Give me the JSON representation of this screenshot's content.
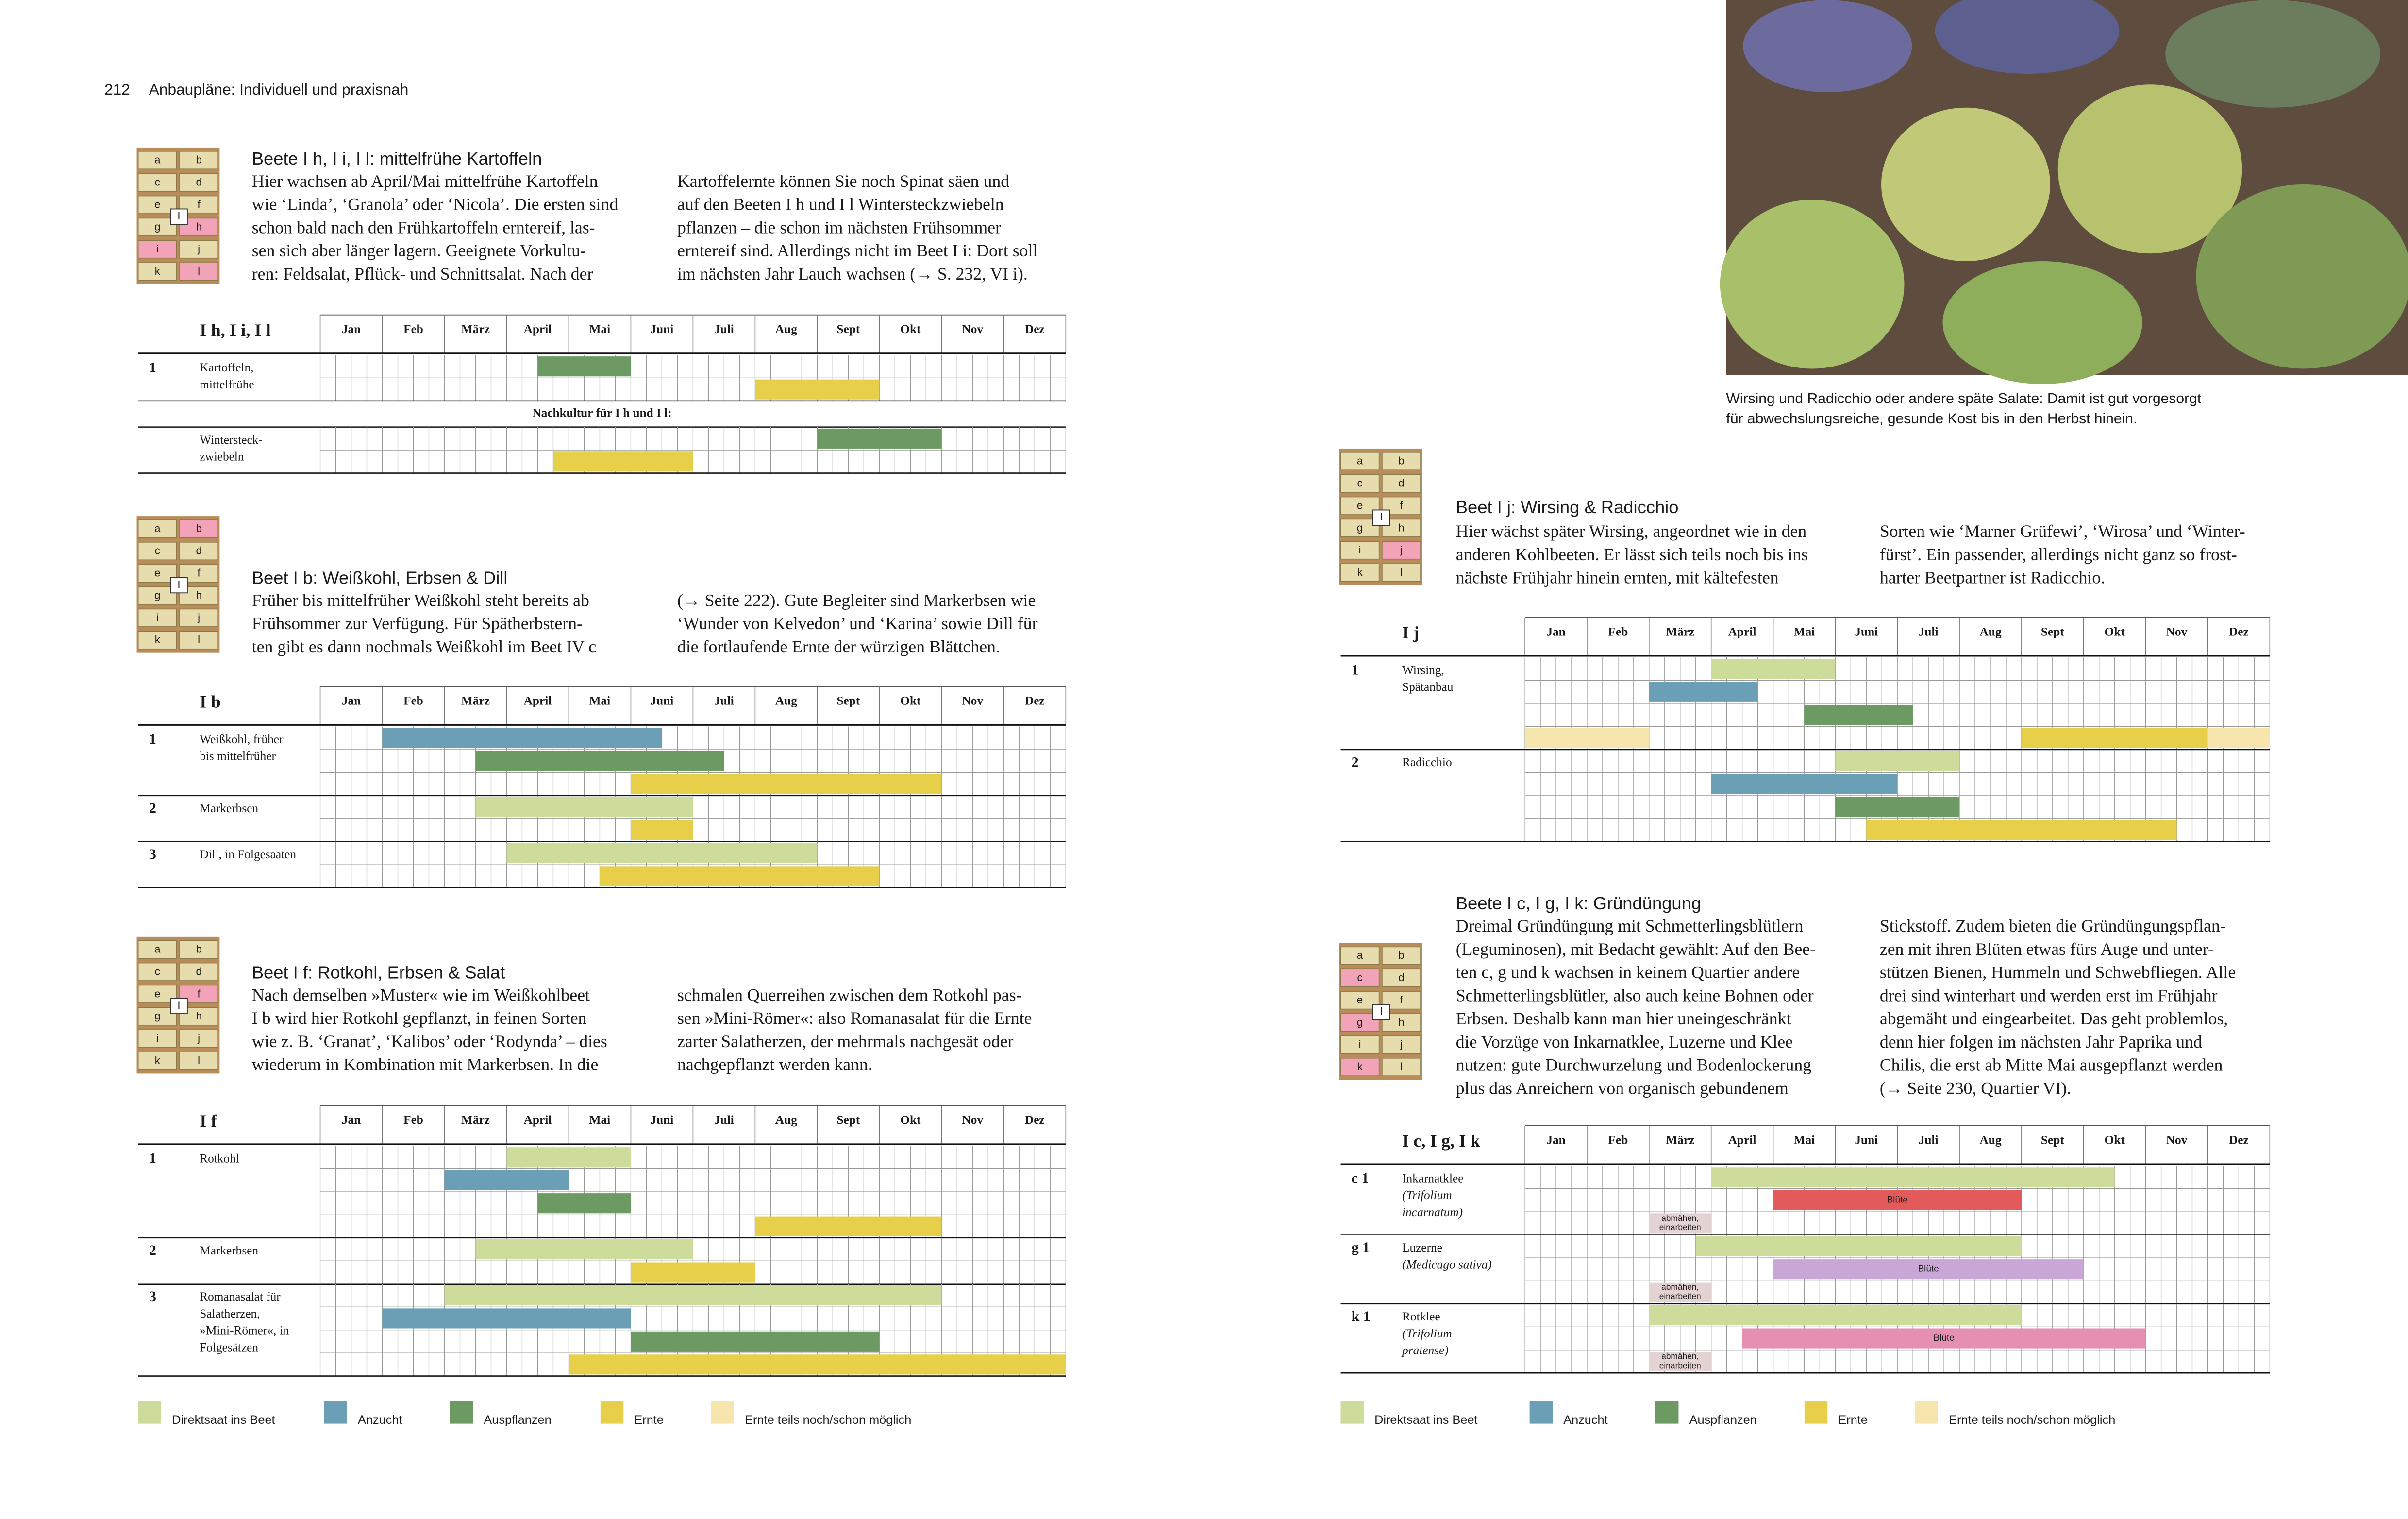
{
  "header": {
    "page": "212",
    "title": "Anbaupläne: Individuell und praxisnah"
  },
  "photo": {
    "caption": [
      "Wirsing und Radicchio oder andere späte Salate: Damit ist gut vorgesorgt",
      "für abwechslungsreiche, gesunde Kost bis in den Herbst hinein."
    ]
  },
  "months": [
    "Jan",
    "Feb",
    "März",
    "April",
    "Mai",
    "Juni",
    "Juli",
    "Aug",
    "Sept",
    "Okt",
    "Nov",
    "Dez"
  ],
  "sections": [
    {
      "bed": {
        "cells": [
          "a",
          "b",
          "c",
          "d",
          "e",
          "f",
          "g",
          "h",
          "i",
          "j",
          "k",
          "l"
        ],
        "center": "I",
        "highlight": [
          "h",
          "i",
          "l"
        ]
      },
      "title": "Beete I h, I i, I l: mittelfrühe Kartoffeln",
      "columns": [
        [
          "Hier wachsen ab April/Mai mittelfrühe Kartoffeln",
          "wie ‘Linda’, ‘Granola’ oder ‘Nicola’. Die ersten sind",
          "schon bald nach den Frühkartoffeln erntereif, las-",
          "sen sich aber länger lagern. Geeignete Vorkultu-",
          "ren: Feldsalat, Pflück- und Schnittsalat. Nach der"
        ],
        [
          "Kartoffelernte können Sie noch Spinat säen und",
          "auf den Beeten I h und I l Wintersteckzwiebeln",
          "pflanzen – die schon im nächsten Frühsommer",
          "erntereif sind. Allerdings nicht im Beet I i: Dort soll",
          "im nächsten Jahr Lauch wachsen (→ S. 232, VI i)."
        ]
      ],
      "table": {
        "label": "I h, I i, I l",
        "groups": [
          {
            "number": "1",
            "name": [
              "Kartoffeln,",
              "mittelfrühe"
            ],
            "rows": [
              [
                {
                  "start": 3.5,
                  "end": 5,
                  "color": "#6d9a63"
                }
              ],
              [
                {
                  "start": 7,
                  "end": 9,
                  "color": "#e8cf4a"
                }
              ]
            ]
          },
          {
            "note": "Nachkultur für I h und I l:"
          },
          {
            "name": [
              "Wintersteck-",
              "zwiebeln"
            ],
            "rows": [
              [
                {
                  "start": 8,
                  "end": 10,
                  "color": "#6d9a63"
                }
              ],
              [
                {
                  "start": 3.75,
                  "end": 6,
                  "color": "#e8cf4a"
                }
              ]
            ]
          }
        ]
      }
    },
    {
      "bed": {
        "cells": [
          "a",
          "b",
          "c",
          "d",
          "e",
          "f",
          "g",
          "h",
          "i",
          "j",
          "k",
          "l"
        ],
        "center": "I",
        "highlight": [
          "b"
        ]
      },
      "title": "Beet I b: Weißkohl, Erbsen & Dill",
      "columns": [
        [
          "Früher bis mittelfrüher Weißkohl steht bereits ab",
          "Frühsommer zur Verfügung. Für Spätherbstern-",
          "ten gibt es dann nochmals Weißkohl im Beet IV c"
        ],
        [
          "(→ Seite 222). Gute Begleiter sind Markerbsen wie",
          "‘Wunder von Kelvedon’ und ‘Karina’ sowie Dill für",
          "die fortlaufende Ernte der würzigen Blättchen."
        ]
      ],
      "table": {
        "label": "I b",
        "groups": [
          {
            "number": "1",
            "name": [
              "Weißkohl, früher",
              "bis mittelfrüher"
            ],
            "rows": [
              [
                {
                  "start": 1,
                  "end": 5.5,
                  "color": "#6b9fb6"
                }
              ],
              [
                {
                  "start": 2.5,
                  "end": 6.5,
                  "color": "#6d9a63"
                }
              ],
              [
                {
                  "start": 5,
                  "end": 10,
                  "color": "#e8cf4a"
                }
              ]
            ]
          },
          {
            "number": "2",
            "name": [
              "Markerbsen"
            ],
            "rows": [
              [
                {
                  "start": 2.5,
                  "end": 6,
                  "color": "#cddb9b"
                }
              ],
              [
                {
                  "start": 5,
                  "end": 6,
                  "color": "#e8cf4a"
                }
              ]
            ]
          },
          {
            "number": "3",
            "name": [
              "Dill, in Folgesaaten"
            ],
            "rows": [
              [
                {
                  "start": 3,
                  "end": 8,
                  "color": "#cddb9b"
                }
              ],
              [
                {
                  "start": 4.5,
                  "end": 9,
                  "color": "#e8cf4a"
                }
              ]
            ]
          }
        ]
      }
    },
    {
      "bed": {
        "cells": [
          "a",
          "b",
          "c",
          "d",
          "e",
          "f",
          "g",
          "h",
          "i",
          "j",
          "k",
          "l"
        ],
        "center": "I",
        "highlight": [
          "f"
        ]
      },
      "title": "Beet I f: Rotkohl, Erbsen & Salat",
      "columns": [
        [
          "Nach demselben »Muster« wie im Weißkohlbeet",
          "I b wird hier Rotkohl gepflanzt, in feinen Sorten",
          "wie z. B. ‘Granat’, ‘Kalibos’ oder ‘Rodynda’ – dies",
          "wiederum in Kombination mit Markerbsen. In die"
        ],
        [
          "schmalen Querreihen zwischen dem Rotkohl pas-",
          "sen »Mini-Römer«: also Romanasalat für die Ernte",
          "zarter Salatherzen, der mehrmals nachgesät oder",
          "nachgepflanzt werden kann."
        ]
      ],
      "table": {
        "label": "I f",
        "groups": [
          {
            "number": "1",
            "name": [
              "Rotkohl"
            ],
            "rows": [
              [
                {
                  "start": 3,
                  "end": 5,
                  "color": "#cddb9b"
                }
              ],
              [
                {
                  "start": 2,
                  "end": 4,
                  "color": "#6b9fb6"
                }
              ],
              [
                {
                  "start": 3.5,
                  "end": 5,
                  "color": "#6d9a63"
                }
              ],
              [
                {
                  "start": 7,
                  "end": 10,
                  "color": "#e8cf4a"
                }
              ]
            ]
          },
          {
            "number": "2",
            "name": [
              "Markerbsen"
            ],
            "rows": [
              [
                {
                  "start": 2.5,
                  "end": 6,
                  "color": "#cddb9b"
                }
              ],
              [
                {
                  "start": 5,
                  "end": 7,
                  "color": "#e8cf4a"
                }
              ]
            ]
          },
          {
            "number": "3",
            "name": [
              "Romanasalat für",
              "Salatherzen,",
              "»Mini-Römer«, in",
              "Folgesätzen"
            ],
            "rows": [
              [
                {
                  "start": 2,
                  "end": 10,
                  "color": "#cddb9b"
                }
              ],
              [
                {
                  "start": 1,
                  "end": 5,
                  "color": "#6b9fb6"
                }
              ],
              [
                {
                  "start": 5,
                  "end": 9,
                  "color": "#6d9a63"
                }
              ],
              [
                {
                  "start": 4,
                  "end": 12,
                  "color": "#e8cf4a"
                }
              ]
            ]
          }
        ]
      }
    },
    {
      "bed": {
        "cells": [
          "a",
          "b",
          "c",
          "d",
          "e",
          "f",
          "g",
          "h",
          "i",
          "j",
          "k",
          "l"
        ],
        "center": "I",
        "highlight": [
          "j"
        ]
      },
      "title": "Beet I j: Wirsing & Radicchio",
      "columns": [
        [
          "Hier wächst später Wirsing, angeordnet wie in den",
          "anderen Kohlbeeten. Er lässt sich teils noch bis ins",
          "nächste Frühjahr hinein ernten, mit kältefesten"
        ],
        [
          "Sorten wie ‘Marner Grüfewi’, ‘Wirosa’ und ‘Winter-",
          "fürst’. Ein passender, allerdings nicht ganz so frost-",
          "harter Beetpartner ist Radicchio."
        ]
      ],
      "table": {
        "label": "I j",
        "groups": [
          {
            "number": "1",
            "name": [
              "Wirsing,",
              "Spätanbau"
            ],
            "rows": [
              [
                {
                  "start": 3,
                  "end": 5,
                  "color": "#cddb9b"
                }
              ],
              [
                {
                  "start": 2,
                  "end": 3.75,
                  "color": "#6b9fb6"
                }
              ],
              [
                {
                  "start": 4.5,
                  "end": 6.25,
                  "color": "#6d9a63"
                }
              ],
              [
                {
                  "start": 0,
                  "end": 2,
                  "color": "#f6e6ad"
                },
                {
                  "start": 8,
                  "end": 11,
                  "color": "#e8cf4a"
                },
                {
                  "start": 11,
                  "end": 12,
                  "color": "#f6e6ad"
                }
              ]
            ]
          },
          {
            "number": "2",
            "name": [
              "Radicchio"
            ],
            "rows": [
              [
                {
                  "start": 5,
                  "end": 7,
                  "color": "#cddb9b"
                }
              ],
              [
                {
                  "start": 3,
                  "end": 6,
                  "color": "#6b9fb6"
                }
              ],
              [
                {
                  "start": 5,
                  "end": 7,
                  "color": "#6d9a63"
                }
              ],
              [
                {
                  "start": 5.5,
                  "end": 10.5,
                  "color": "#e8cf4a"
                }
              ]
            ]
          }
        ]
      }
    },
    {
      "bed": {
        "cells": [
          "a",
          "b",
          "c",
          "d",
          "e",
          "f",
          "g",
          "h",
          "i",
          "j",
          "k",
          "l"
        ],
        "center": "I",
        "highlight": [
          "c",
          "g",
          "k"
        ]
      },
      "title": "Beete I c, I g, I k: Gründüngung",
      "columns": [
        [
          "Dreimal Gründüngung mit Schmetterlingsblütlern",
          "(Leguminosen), mit Bedacht gewählt: Auf den Bee-",
          "ten c, g und k wachsen in keinem Quartier andere",
          "Schmetterlingsblütler, also auch keine Bohnen oder",
          "Erbsen. Deshalb kann man hier uneingeschränkt",
          "die Vorzüge von Inkarnatklee, Luzerne und Klee",
          "nutzen: gute Durchwurzelung und Bodenlockerung",
          "plus das Anreichern von organisch gebundenem"
        ],
        [
          "Stickstoff. Zudem bieten die Gründüngungspflan-",
          "zen mit ihren Blüten etwas fürs Auge und unter-",
          "stützen Bienen, Hummeln und Schwebfliegen. Alle",
          "drei sind winterhart und werden erst im Frühjahr",
          "abgemäht und eingearbeitet. Das geht problemlos,",
          "denn hier folgen im nächsten Jahr Paprika und",
          "Chilis, die erst ab Mitte Mai ausgepflanzt werden",
          "(→ Seite 230, Quartier VI)."
        ]
      ],
      "table": {
        "label": "I c, I g, I k",
        "groups": [
          {
            "number": "c 1",
            "name": [
              "Inkarnatklee"
            ],
            "latin": [
              "(Trifolium",
              "incarnatum)"
            ],
            "rows": [
              [
                {
                  "start": 3,
                  "end": 9.5,
                  "color": "#cddb9b"
                }
              ],
              [
                {
                  "start": 4,
                  "end": 8,
                  "color": "#e35a5a",
                  "label": [
                    "Blüte"
                  ]
                }
              ],
              [
                {
                  "start": 2,
                  "end": 3,
                  "color": "#e4d3d3",
                  "label": [
                    "abmähen,",
                    "einarbeiten"
                  ]
                }
              ]
            ]
          },
          {
            "number": "g 1",
            "name": [
              "Luzerne"
            ],
            "latin": [
              "(Medicago sativa)"
            ],
            "rows": [
              [
                {
                  "start": 2.75,
                  "end": 8,
                  "color": "#cddb9b"
                }
              ],
              [
                {
                  "start": 4,
                  "end": 9,
                  "color": "#c8a6d6",
                  "label": [
                    "Blüte"
                  ]
                }
              ],
              [
                {
                  "start": 2,
                  "end": 3,
                  "color": "#e4d3d3",
                  "label": [
                    "abmähen,",
                    "einarbeiten"
                  ]
                }
              ]
            ]
          },
          {
            "number": "k 1",
            "name": [
              "Rotklee"
            ],
            "latin": [
              "(Trifolium",
              "pratense)"
            ],
            "rows": [
              [
                {
                  "start": 2,
                  "end": 8,
                  "color": "#cddb9b"
                }
              ],
              [
                {
                  "start": 3.5,
                  "end": 10,
                  "color": "#e58fb3",
                  "label": [
                    "Blüte"
                  ]
                }
              ],
              [
                {
                  "start": 2,
                  "end": 3,
                  "color": "#e4d3d3",
                  "label": [
                    "abmähen,",
                    "einarbeiten"
                  ]
                }
              ]
            ]
          }
        ]
      }
    }
  ],
  "legends": [
    [
      {
        "name": "Direktsaat ins Beet",
        "color": "#cddb9b"
      },
      {
        "name": "Anzucht",
        "color": "#6b9fb6"
      },
      {
        "name": "Auspflanzen",
        "color": "#6d9a63"
      },
      {
        "name": "Ernte",
        "color": "#e8cf4a"
      },
      {
        "name": "Ernte teils noch/schon möglich",
        "color": "#f6e6ad"
      }
    ],
    [
      {
        "name": "Direktsaat ins Beet",
        "color": "#cddb9b"
      },
      {
        "name": "Anzucht",
        "color": "#6b9fb6"
      },
      {
        "name": "Auspflanzen",
        "color": "#6d9a63"
      },
      {
        "name": "Ernte",
        "color": "#e8cf4a"
      },
      {
        "name": "Ernte teils noch/schon möglich",
        "color": "#f6e6ad"
      }
    ]
  ]
}
